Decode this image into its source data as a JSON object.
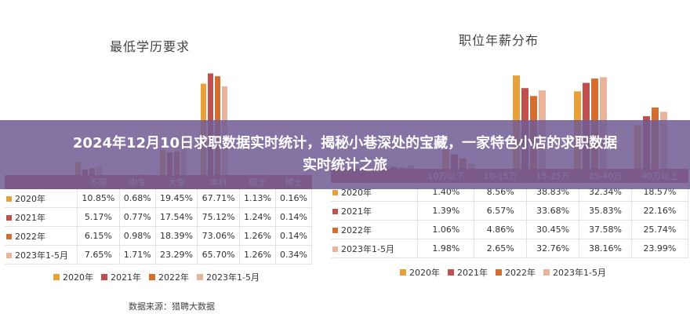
{
  "banner": {
    "title": "2024年12月10日求职数据实时统计，揭秘小巷深处的宝藏，一家特色小店的求职数据实时统计之旅"
  },
  "source": "数据来源：猎聘大数据",
  "chart_data": [
    {
      "type": "bar",
      "title": "最低学历要求",
      "categories": [
        "不限",
        "中专",
        "大专",
        "本科",
        "硕士",
        "博士"
      ],
      "series": [
        {
          "name": "2020年",
          "color": "#e8a03a",
          "values": [
            10.85,
            0.68,
            19.45,
            67.71,
            1.13,
            0.16
          ]
        },
        {
          "name": "2021年",
          "color": "#c0504d",
          "values": [
            5.17,
            0.77,
            17.54,
            75.12,
            1.24,
            0.14
          ]
        },
        {
          "name": "2022年",
          "color": "#d56d2f",
          "values": [
            6.15,
            0.98,
            18.39,
            73.06,
            1.26,
            0.14
          ]
        },
        {
          "name": "2023年1-5月",
          "color": "#e9b49b",
          "values": [
            7.65,
            1.71,
            23.29,
            65.7,
            1.26,
            0.34
          ]
        }
      ],
      "table": {
        "rows": [
          {
            "label": "2020年",
            "cells": [
              "10.85%",
              "0.68%",
              "19.45%",
              "67.71%",
              "1.13%",
              "0.16%"
            ]
          },
          {
            "label": "2021年",
            "cells": [
              "5.17%",
              "0.77%",
              "17.54%",
              "75.12%",
              "1.24%",
              "0.14%"
            ]
          },
          {
            "label": "2022年",
            "cells": [
              "6.15%",
              "0.98%",
              "18.39%",
              "73.06%",
              "1.26%",
              "0.14%"
            ]
          },
          {
            "label": "2023年1-5月",
            "cells": [
              "7.65%",
              "1.71%",
              "23.29%",
              "65.70%",
              "1.26%",
              "0.34%"
            ]
          }
        ]
      },
      "ylim": [
        0,
        80
      ]
    },
    {
      "type": "bar",
      "title": "职位年薪分布",
      "categories": [
        "10万以下",
        "10-15万",
        "15-25万",
        "25-40万",
        "40万以上"
      ],
      "series": [
        {
          "name": "2020年",
          "color": "#e8a03a",
          "values": [
            1.4,
            8.56,
            38.83,
            32.34,
            18.57
          ]
        },
        {
          "name": "2021年",
          "color": "#c0504d",
          "values": [
            1.39,
            6.57,
            33.68,
            35.83,
            22.16
          ]
        },
        {
          "name": "2022年",
          "color": "#d56d2f",
          "values": [
            1.06,
            4.86,
            30.45,
            37.58,
            25.74
          ]
        },
        {
          "name": "2023年1-5月",
          "color": "#e9b49b",
          "values": [
            1.98,
            2.65,
            32.76,
            38.16,
            23.99
          ]
        }
      ],
      "table": {
        "rows": [
          {
            "label": "2020年",
            "cells": [
              "1.40%",
              "8.56%",
              "38.83%",
              "32.34%",
              "18.57%"
            ]
          },
          {
            "label": "2021年",
            "cells": [
              "1.39%",
              "6.57%",
              "33.68%",
              "35.83%",
              "22.16%"
            ]
          },
          {
            "label": "2022年",
            "cells": [
              "1.06%",
              "4.86%",
              "30.45%",
              "37.58%",
              "25.74%"
            ]
          },
          {
            "label": "2023年1-5月",
            "cells": [
              "1.98%",
              "2.65%",
              "32.76%",
              "38.16%",
              "23.99%"
            ]
          }
        ]
      },
      "ylim": [
        0,
        45
      ]
    }
  ]
}
